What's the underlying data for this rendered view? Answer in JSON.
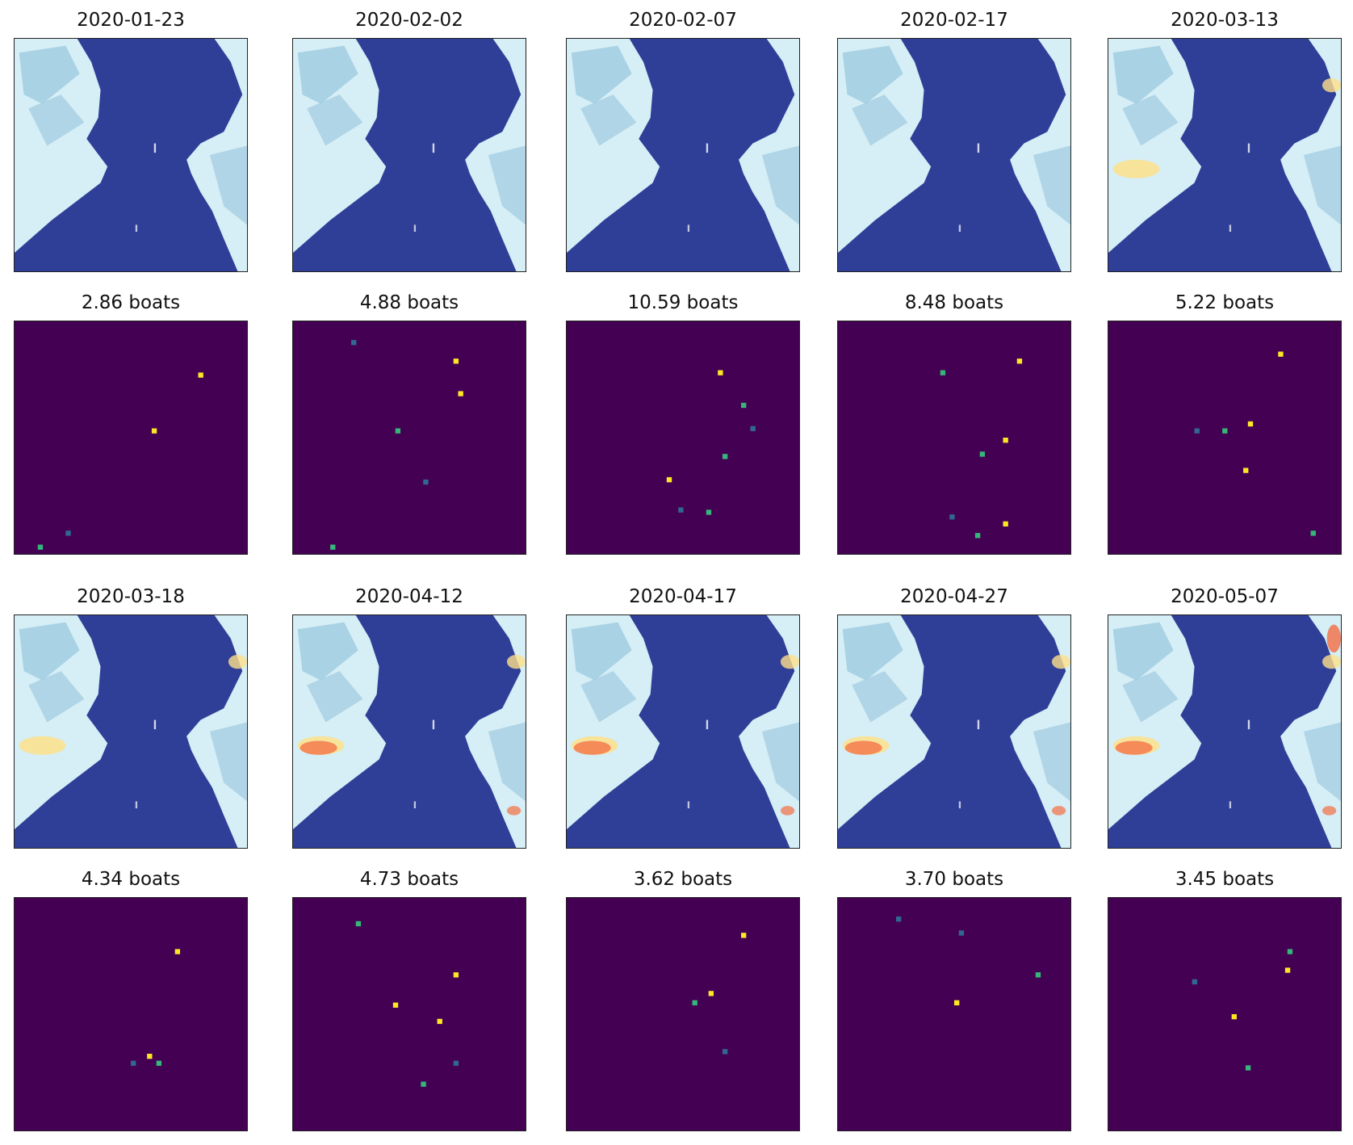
{
  "figure": {
    "panel_pairs": [
      {
        "date": "2020-01-23",
        "count_label": "2.86 boats",
        "scene": 0
      },
      {
        "date": "2020-02-02",
        "count_label": "4.88 boats",
        "scene": 0
      },
      {
        "date": "2020-02-07",
        "count_label": "10.59 boats",
        "scene": 0
      },
      {
        "date": "2020-02-17",
        "count_label": "8.48 boats",
        "scene": 0
      },
      {
        "date": "2020-03-13",
        "count_label": "5.22 boats",
        "scene": 1
      },
      {
        "date": "2020-03-18",
        "count_label": "4.34 boats",
        "scene": 1
      },
      {
        "date": "2020-04-12",
        "count_label": "4.73 boats",
        "scene": 2
      },
      {
        "date": "2020-04-17",
        "count_label": "3.62 boats",
        "scene": 2
      },
      {
        "date": "2020-04-27",
        "count_label": "3.70 boats",
        "scene": 3
      },
      {
        "date": "2020-05-07",
        "count_label": "3.45 boats",
        "scene": 4
      }
    ],
    "colors": {
      "water": "#2f3f98",
      "land_light": "#d6eef5",
      "land_mid": "#9ecae1",
      "land_warm": "#fee08b",
      "land_hot": "#f46d43",
      "heatmap_bg": "#440154",
      "heat_high": "#fde725",
      "heat_mid": "#35b779",
      "heat_low": "#31688e"
    }
  }
}
